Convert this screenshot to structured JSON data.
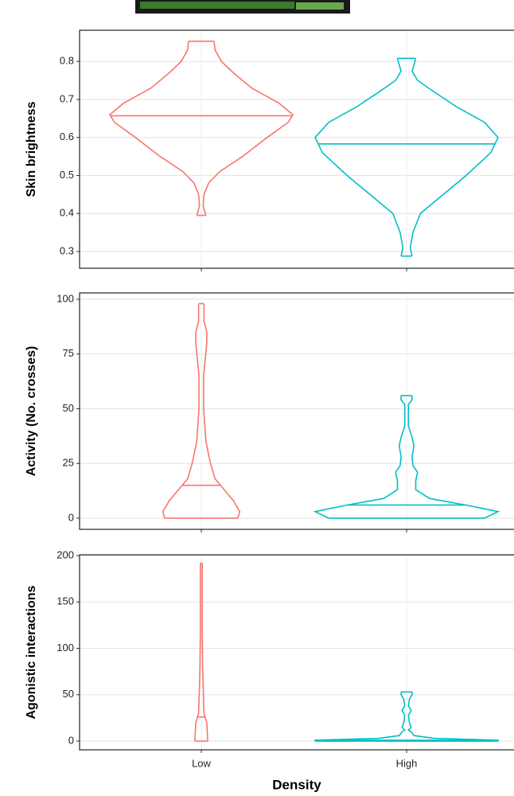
{
  "chart_data": [
    {
      "type": "violin",
      "ylabel": "Skin brightness",
      "ylim": [
        0.256,
        0.882
      ],
      "yticks": [
        0.3,
        0.4,
        0.5,
        0.6,
        0.7,
        0.8
      ],
      "grid": true,
      "series": [
        {
          "color": "#f8766d",
          "median": 0.657,
          "profile": {
            "y": [
              0.395,
              0.42,
              0.45,
              0.48,
              0.51,
              0.55,
              0.6,
              0.64,
              0.66,
              0.69,
              0.73,
              0.77,
              0.8,
              0.83,
              0.853
            ],
            "density": [
              0.05,
              0.02,
              0.03,
              0.08,
              0.2,
              0.45,
              0.72,
              0.95,
              1.0,
              0.85,
              0.55,
              0.35,
              0.22,
              0.15,
              0.14
            ]
          }
        },
        {
          "color": "#00bfc4",
          "median": 0.583,
          "profile": {
            "y": [
              0.288,
              0.31,
              0.35,
              0.4,
              0.44,
              0.5,
              0.56,
              0.6,
              0.64,
              0.68,
              0.72,
              0.75,
              0.775,
              0.79,
              0.808
            ],
            "density": [
              0.06,
              0.04,
              0.07,
              0.15,
              0.35,
              0.65,
              0.92,
              1.0,
              0.85,
              0.55,
              0.3,
              0.12,
              0.06,
              0.08,
              0.1
            ]
          }
        }
      ]
    },
    {
      "type": "violin",
      "ylabel": "Activity (No. crosses)",
      "ylim": [
        -5.1,
        102.9
      ],
      "yticks": [
        0,
        25,
        50,
        75,
        100
      ],
      "grid": true,
      "series": [
        {
          "color": "#f8766d",
          "median": 15,
          "profile": {
            "y": [
              0,
              3,
              8,
              13,
              18,
              25,
              35,
              50,
              65,
              80,
              85,
              90,
              95,
              98
            ],
            "density": [
              0.4,
              0.42,
              0.35,
              0.25,
              0.15,
              0.1,
              0.05,
              0.025,
              0.025,
              0.06,
              0.06,
              0.03,
              0.03,
              0.03
            ]
          }
        },
        {
          "color": "#00bfc4",
          "median": 6,
          "profile": {
            "y": [
              0,
              3,
              6,
              9,
              13,
              17,
              21,
              24,
              28,
              33,
              37,
              42,
              48,
              52,
              54,
              56
            ],
            "density": [
              0.85,
              1.0,
              0.65,
              0.25,
              0.1,
              0.1,
              0.12,
              0.07,
              0.06,
              0.08,
              0.06,
              0.02,
              0.02,
              0.02,
              0.06,
              0.06
            ]
          }
        }
      ]
    },
    {
      "type": "violin",
      "ylabel": "Agonistic interactions",
      "xlabel": "Density",
      "categories": [
        "Low",
        "High"
      ],
      "ylim": [
        -9.4,
        200.9
      ],
      "yticks": [
        0,
        50,
        100,
        150,
        200
      ],
      "grid": true,
      "series": [
        {
          "color": "#f8766d",
          "median": 26,
          "profile": {
            "y": [
              0,
              20,
              30,
              60,
              80,
              120,
              192
            ],
            "density": [
              0.07,
              0.06,
              0.03,
              0.02,
              0.015,
              0.01,
              0.01
            ]
          }
        },
        {
          "color": "#00bfc4",
          "median": 1,
          "profile": {
            "y": [
              0,
              1,
              3,
              6,
              10,
              12,
              15,
              20,
              28,
              33,
              38,
              45,
              50,
              53
            ],
            "density": [
              1.0,
              1.0,
              0.3,
              0.08,
              0.05,
              0.02,
              0.05,
              0.03,
              0.02,
              0.05,
              0.02,
              0.03,
              0.06,
              0.06
            ]
          }
        }
      ]
    }
  ]
}
